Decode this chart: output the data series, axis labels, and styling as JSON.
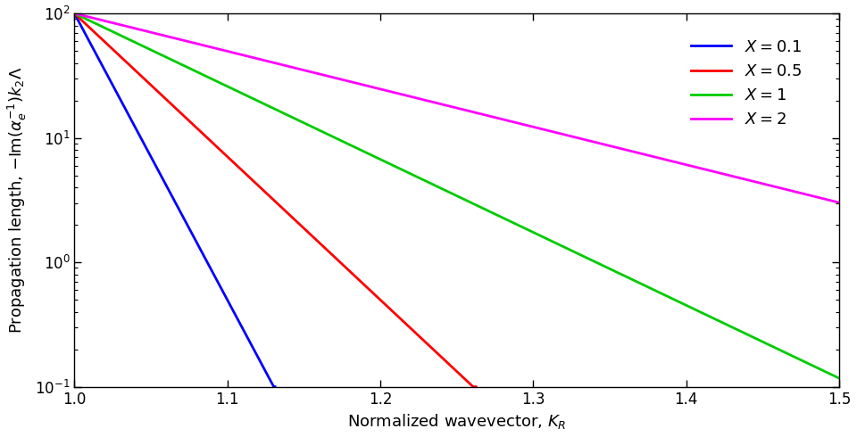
{
  "xlabel": "Normalized wavevector, $K_R$",
  "ylabel": "Propagation length, $-\\mathrm{Im}(\\alpha_e^{-1})k_2\\Lambda$",
  "xlim": [
    1.0,
    1.5
  ],
  "ylim": [
    0.1,
    100
  ],
  "xticks": [
    1.0,
    1.1,
    1.2,
    1.3,
    1.4,
    1.5
  ],
  "background_color": "white",
  "curve_params": [
    {
      "color": "blue",
      "label": "$X = 0.1$",
      "A": 100.0,
      "k": 53.0
    },
    {
      "color": "red",
      "label": "$X = 0.5$",
      "A": 100.0,
      "k": 26.5
    },
    {
      "color": "#00cc00",
      "label": "$X = 1$",
      "A": 100.0,
      "k": 13.5
    },
    {
      "color": "magenta",
      "label": "$X = 2$",
      "A": 100.0,
      "k": 7.0
    }
  ],
  "line_width": 2.0,
  "legend_fontsize": 13,
  "axis_fontsize": 13,
  "tick_fontsize": 12
}
